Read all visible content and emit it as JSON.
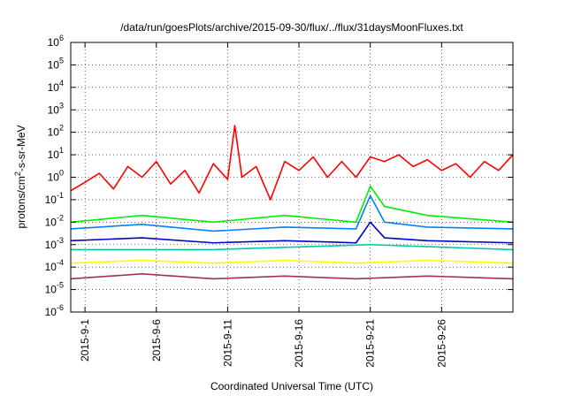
{
  "chart_data": {
    "type": "line",
    "title": "/data/run/goesPlots/archive/2015-09-30/flux/../flux/31daysMoonFluxes.txt",
    "xlabel": "Coordinated Universal Time (UTC)",
    "ylabel": {
      "pre": "protons/cm",
      "sup": "2",
      "post": "-s-sr-MeV"
    },
    "y_scale": "log",
    "y_ticks": [
      {
        "base": "10",
        "exp": "-6",
        "value": 1e-06
      },
      {
        "base": "10",
        "exp": "-5",
        "value": 1e-05
      },
      {
        "base": "10",
        "exp": "-4",
        "value": 0.0001
      },
      {
        "base": "10",
        "exp": "-3",
        "value": 0.001
      },
      {
        "base": "10",
        "exp": "-2",
        "value": 0.01
      },
      {
        "base": "10",
        "exp": "-1",
        "value": 0.1
      },
      {
        "base": "10",
        "exp": "0",
        "value": 1
      },
      {
        "base": "10",
        "exp": "1",
        "value": 10
      },
      {
        "base": "10",
        "exp": "2",
        "value": 100
      },
      {
        "base": "10",
        "exp": "3",
        "value": 1000
      },
      {
        "base": "10",
        "exp": "4",
        "value": 10000
      },
      {
        "base": "10",
        "exp": "5",
        "value": 100000
      },
      {
        "base": "10",
        "exp": "6",
        "value": 1000000
      }
    ],
    "ylim": [
      1e-06,
      1000000.0
    ],
    "xlim": [
      "2015-08-31",
      "2015-10-01"
    ],
    "x_ticks": [
      {
        "label": "2015-9-1",
        "date": "2015-09-01"
      },
      {
        "label": "2015-9-6",
        "date": "2015-09-06"
      },
      {
        "label": "2015-9-11",
        "date": "2015-09-11"
      },
      {
        "label": "2015-9-16",
        "date": "2015-09-16"
      },
      {
        "label": "2015-9-21",
        "date": "2015-09-21"
      },
      {
        "label": "2015-9-26",
        "date": "2015-09-26"
      }
    ],
    "grid": true,
    "series": [
      {
        "color": "#ff0000",
        "points": [
          [
            "2015-08-31",
            0.25
          ],
          [
            "2015-09-01",
            0.6
          ],
          [
            "2015-09-02",
            1.5
          ],
          [
            "2015-09-03",
            0.3
          ],
          [
            "2015-09-04",
            3
          ],
          [
            "2015-09-05",
            1
          ],
          [
            "2015-09-06",
            5
          ],
          [
            "2015-09-07",
            0.5
          ],
          [
            "2015-09-08",
            2
          ],
          [
            "2015-09-09",
            0.2
          ],
          [
            "2015-09-10",
            4
          ],
          [
            "2015-09-11",
            0.8
          ],
          [
            "2015-09-11.5",
            200
          ],
          [
            "2015-09-12",
            1
          ],
          [
            "2015-09-13",
            3
          ],
          [
            "2015-09-14",
            0.1
          ],
          [
            "2015-09-15",
            5
          ],
          [
            "2015-09-16",
            2
          ],
          [
            "2015-09-17",
            8
          ],
          [
            "2015-09-18",
            1
          ],
          [
            "2015-09-19",
            5
          ],
          [
            "2015-09-20",
            1
          ],
          [
            "2015-09-21",
            8
          ],
          [
            "2015-09-22",
            5
          ],
          [
            "2015-09-23",
            10
          ],
          [
            "2015-09-24",
            3
          ],
          [
            "2015-09-25",
            6
          ],
          [
            "2015-09-26",
            2
          ],
          [
            "2015-09-27",
            4
          ],
          [
            "2015-09-28",
            1
          ],
          [
            "2015-09-29",
            5
          ],
          [
            "2015-09-30",
            2
          ],
          [
            "2015-10-01",
            10
          ]
        ]
      },
      {
        "color": "#00ee00",
        "points": [
          [
            "2015-08-31",
            0.01
          ],
          [
            "2015-09-05",
            0.02
          ],
          [
            "2015-09-10",
            0.01
          ],
          [
            "2015-09-15",
            0.02
          ],
          [
            "2015-09-20",
            0.01
          ],
          [
            "2015-09-21",
            0.4
          ],
          [
            "2015-09-22",
            0.05
          ],
          [
            "2015-09-25",
            0.02
          ],
          [
            "2015-10-01",
            0.01
          ]
        ]
      },
      {
        "color": "#0080ff",
        "points": [
          [
            "2015-08-31",
            0.005
          ],
          [
            "2015-09-05",
            0.008
          ],
          [
            "2015-09-10",
            0.004
          ],
          [
            "2015-09-15",
            0.006
          ],
          [
            "2015-09-20",
            0.005
          ],
          [
            "2015-09-21",
            0.15
          ],
          [
            "2015-09-22",
            0.01
          ],
          [
            "2015-09-25",
            0.006
          ],
          [
            "2015-10-01",
            0.005
          ]
        ]
      },
      {
        "color": "#0000cc",
        "points": [
          [
            "2015-08-31",
            0.0015
          ],
          [
            "2015-09-05",
            0.002
          ],
          [
            "2015-09-10",
            0.0012
          ],
          [
            "2015-09-15",
            0.0015
          ],
          [
            "2015-09-20",
            0.0012
          ],
          [
            "2015-09-21",
            0.01
          ],
          [
            "2015-09-22",
            0.002
          ],
          [
            "2015-09-25",
            0.0015
          ],
          [
            "2015-10-01",
            0.0012
          ]
        ]
      },
      {
        "color": "#00c8a0",
        "points": [
          [
            "2015-08-31",
            0.0006
          ],
          [
            "2015-09-10",
            0.0006
          ],
          [
            "2015-09-21",
            0.001
          ],
          [
            "2015-10-01",
            0.0006
          ]
        ]
      },
      {
        "color": "#ffff00",
        "points": [
          [
            "2015-08-31",
            0.00015
          ],
          [
            "2015-09-05",
            0.0002
          ],
          [
            "2015-09-10",
            0.00015
          ],
          [
            "2015-09-15",
            0.0002
          ],
          [
            "2015-09-20",
            0.00015
          ],
          [
            "2015-09-25",
            0.0002
          ],
          [
            "2015-10-01",
            0.00015
          ]
        ]
      },
      {
        "color": "#a0305a",
        "points": [
          [
            "2015-08-31",
            3e-05
          ],
          [
            "2015-09-05",
            5e-05
          ],
          [
            "2015-09-10",
            3e-05
          ],
          [
            "2015-09-15",
            4e-05
          ],
          [
            "2015-09-20",
            3e-05
          ],
          [
            "2015-09-25",
            4e-05
          ],
          [
            "2015-10-01",
            3e-05
          ]
        ]
      }
    ]
  }
}
